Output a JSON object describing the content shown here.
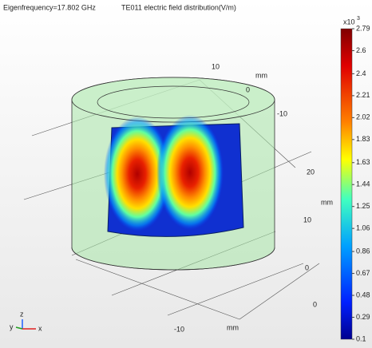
{
  "header": {
    "frequency": "Eigenfrequency=17.802 GHz",
    "title": "TE011 electric field distribution(V/m)"
  },
  "colorbar": {
    "multiplier": "x10",
    "exponent": "3",
    "lim": [
      0.1,
      2.79
    ],
    "ticks": [
      2.79,
      2.6,
      2.4,
      2.21,
      2.02,
      1.83,
      1.63,
      1.44,
      1.25,
      1.06,
      0.86,
      0.67,
      0.48,
      0.29,
      0.1
    ]
  },
  "axes": {
    "labels": [
      "10",
      "mm",
      "0",
      "-10",
      "20",
      "mm",
      "10",
      "0",
      "0",
      "-10",
      "mm"
    ]
  },
  "triad": [
    "y",
    "z",
    "x"
  ]
}
